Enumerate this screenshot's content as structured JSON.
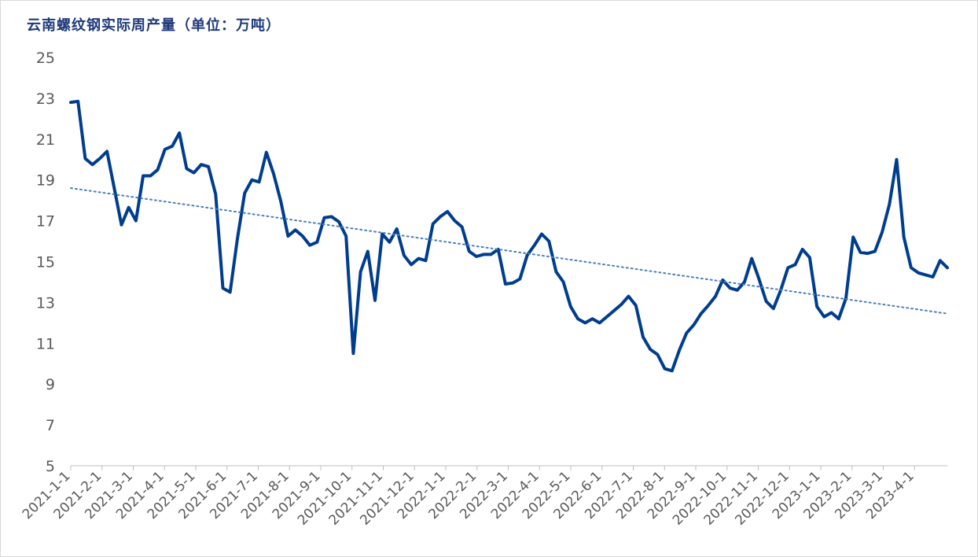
{
  "chart_data": {
    "type": "line",
    "title": "云南螺纹钢实际周产量（单位：万吨）",
    "ylim": [
      5,
      25
    ],
    "yticks": [
      5,
      7,
      9,
      11,
      13,
      15,
      17,
      19,
      21,
      23,
      25
    ],
    "xticks": [
      "2021-1-1",
      "2021-2-1",
      "2021-3-1",
      "2021-4-1",
      "2021-5-1",
      "2021-6-1",
      "2021-7-1",
      "2021-8-1",
      "2021-9-1",
      "2021-10-1",
      "2021-11-1",
      "2021-12-1",
      "2022-1-1",
      "2022-2-1",
      "2022-3-1",
      "2022-4-1",
      "2022-5-1",
      "2022-6-1",
      "2022-7-1",
      "2022-8-1",
      "2022-9-1",
      "2022-10-1",
      "2022-11-1",
      "2022-12-1",
      "2023-1-1",
      "2023-2-1",
      "2023-3-1",
      "2023-4-1"
    ],
    "grid": false,
    "legend": "none",
    "series": [
      {
        "values": [
          22.8,
          22.85,
          20.05,
          19.75,
          20.05,
          20.4,
          18.6,
          16.8,
          17.65,
          17.0,
          19.2,
          19.2,
          19.5,
          20.5,
          20.65,
          21.3,
          19.55,
          19.35,
          19.75,
          19.65,
          18.3,
          13.7,
          13.5,
          16.1,
          18.35,
          19.0,
          18.9,
          20.35,
          19.3,
          17.95,
          16.25,
          16.55,
          16.25,
          15.8,
          15.95,
          17.15,
          17.2,
          16.95,
          16.25,
          10.5,
          14.5,
          15.5,
          13.1,
          16.35,
          15.95,
          16.6,
          15.3,
          14.85,
          15.15,
          15.05,
          16.85,
          17.2,
          17.45,
          17.0,
          16.7,
          15.5,
          15.25,
          15.35,
          15.35,
          15.6,
          13.9,
          13.95,
          14.15,
          15.3,
          15.8,
          16.35,
          16.0,
          14.5,
          14.0,
          12.8,
          12.2,
          12.0,
          12.2,
          12.0,
          12.3,
          12.6,
          12.9,
          13.3,
          12.85,
          11.3,
          10.7,
          10.45,
          9.75,
          9.65,
          10.65,
          11.5,
          11.9,
          12.45,
          12.85,
          13.3,
          14.1,
          13.7,
          13.6,
          14.0,
          15.15,
          14.15,
          13.05,
          12.7,
          13.6,
          14.7,
          14.85,
          15.6,
          15.2,
          12.8,
          12.3,
          12.5,
          12.2,
          13.2,
          16.2,
          15.45,
          15.4,
          15.5,
          16.45,
          17.8,
          20.0,
          16.2,
          14.7,
          14.45,
          14.35,
          14.25,
          15.05,
          14.7
        ]
      }
    ],
    "trendline": {
      "style": "dotted",
      "start": 18.6,
      "end": 12.45
    },
    "colors": {
      "series": "#003d8f",
      "trend": "#4a7ebb",
      "axis": "#bfbfbf",
      "title": "#1f3a7a"
    }
  }
}
